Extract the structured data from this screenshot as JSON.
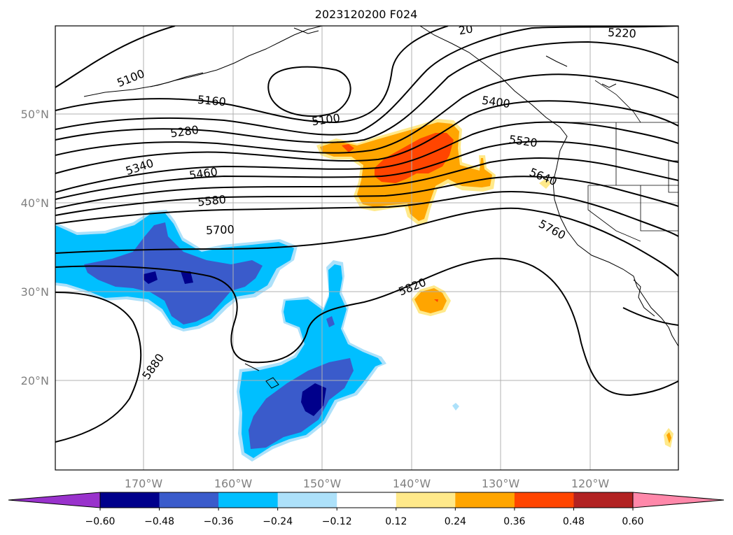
{
  "title": "2023120200 F024",
  "latitude_labels": [
    "50°N",
    "40°N",
    "30°N",
    "20°N"
  ],
  "longitude_labels": [
    "170°W",
    "160°W",
    "150°W",
    "140°W",
    "130°W",
    "120°W"
  ],
  "contour_labels": [
    {
      "id": "c5100a",
      "text": "5100"
    },
    {
      "id": "c5100b",
      "text": "5100"
    },
    {
      "id": "c5160",
      "text": "5160"
    },
    {
      "id": "c5220",
      "text": "5220"
    },
    {
      "id": "c5280",
      "text": "5280"
    },
    {
      "id": "c5340",
      "text": "5340"
    },
    {
      "id": "c5400",
      "text": "5400"
    },
    {
      "id": "c5460",
      "text": "5460"
    },
    {
      "id": "c5520",
      "text": "5520"
    },
    {
      "id": "c5580",
      "text": "5580"
    },
    {
      "id": "c5640",
      "text": "5640"
    },
    {
      "id": "c5700",
      "text": "5700"
    },
    {
      "id": "c5760",
      "text": "5760"
    },
    {
      "id": "c5820",
      "text": "5820"
    },
    {
      "id": "c5880",
      "text": "5880"
    },
    {
      "id": "c5220top",
      "text": "20"
    }
  ],
  "colorbar": {
    "tick_labels": [
      "−0.60",
      "−0.48",
      "−0.36",
      "−0.24",
      "−0.12",
      "0.12",
      "0.24",
      "0.36",
      "0.48",
      "0.60"
    ],
    "colors": [
      "#9932CC",
      "#00008B",
      "#3A5BCB",
      "#00BFFF",
      "#ADE1FA",
      "#FFFFFF",
      "#FFE98A",
      "#FFA500",
      "#FF4500",
      "#B22222",
      "#FF88AA"
    ]
  }
}
